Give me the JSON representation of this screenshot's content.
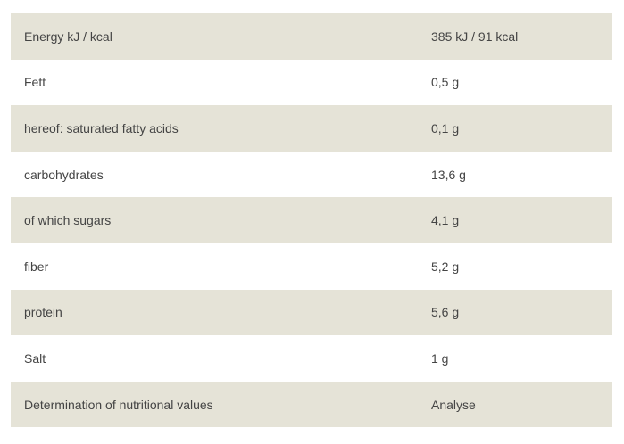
{
  "table": {
    "rows": [
      [
        "Energy kJ / kcal",
        "385 kJ / 91 kcal"
      ],
      [
        "Fett",
        "0,5 g"
      ],
      [
        "hereof: saturated fatty acids",
        "0,1 g"
      ],
      [
        "carbohydrates",
        "13,6 g"
      ],
      [
        "of which sugars",
        "4,1 g"
      ],
      [
        "fiber",
        "5,2 g"
      ],
      [
        "protein",
        "5,6 g"
      ],
      [
        "Salt",
        "1 g"
      ],
      [
        "Determination of nutritional values",
        "Analyse"
      ]
    ]
  }
}
